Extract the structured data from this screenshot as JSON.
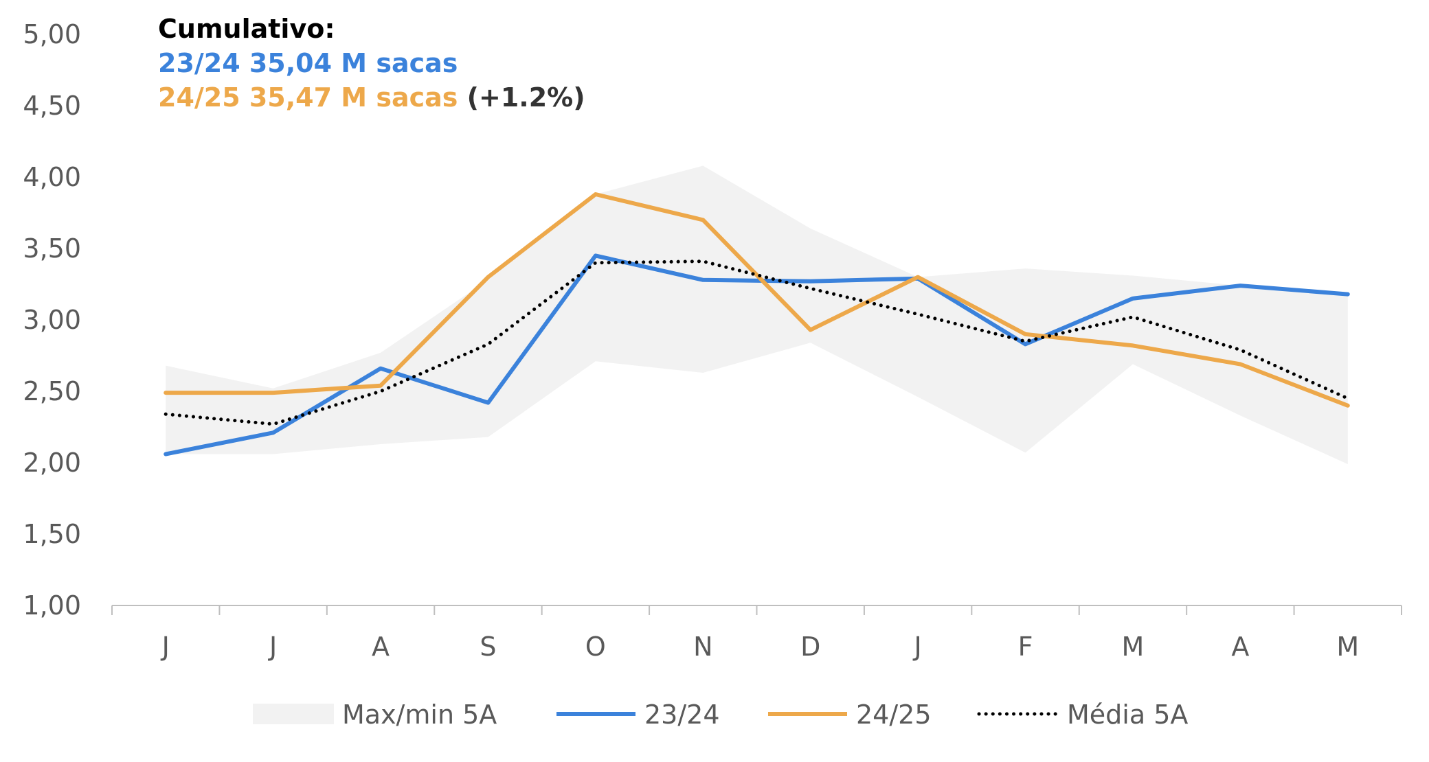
{
  "annotation": {
    "title": "Cumulativo:",
    "line1": "23/24 35,04 M sacas",
    "line2": "24/25 35,47 M sacas",
    "line2_change": "(+1.2%)"
  },
  "colors": {
    "series_2324": "#3B82DB",
    "series_2425": "#EDA84A",
    "media": "#000000",
    "band": "#F2F2F2",
    "axis": "#BFBFBF",
    "tick_text": "#595959",
    "annot_pct": "#333333"
  },
  "chart_data": {
    "type": "line",
    "categories": [
      "J",
      "J",
      "A",
      "S",
      "O",
      "N",
      "D",
      "J",
      "F",
      "M",
      "A",
      "M"
    ],
    "ylim": [
      1.0,
      5.0
    ],
    "yticks": [
      "5,00",
      "4,50",
      "4,00",
      "3,50",
      "3,00",
      "2,50",
      "2,00",
      "1,50",
      "1,00"
    ],
    "ytick_values": [
      5.0,
      4.5,
      4.0,
      3.5,
      3.0,
      2.5,
      2.0,
      1.5,
      1.0
    ],
    "grid": false,
    "legend_position": "bottom",
    "band": {
      "name": "Max/min 5A",
      "max": [
        2.68,
        2.52,
        2.77,
        3.28,
        3.88,
        4.08,
        3.64,
        3.3,
        3.36,
        3.31,
        3.24,
        3.19
      ],
      "min": [
        2.06,
        2.06,
        2.13,
        2.18,
        2.71,
        2.63,
        2.84,
        2.46,
        2.07,
        2.69,
        2.33,
        1.99
      ]
    },
    "series": [
      {
        "name": "23/24",
        "values": [
          2.06,
          2.21,
          2.66,
          2.42,
          3.45,
          3.28,
          3.27,
          3.29,
          2.83,
          3.15,
          3.24,
          3.18
        ]
      },
      {
        "name": "24/25",
        "values": [
          2.49,
          2.49,
          2.54,
          3.3,
          3.88,
          3.7,
          2.93,
          3.3,
          2.9,
          2.82,
          2.69,
          2.4
        ]
      },
      {
        "name": "Média 5A",
        "values": [
          2.34,
          2.27,
          2.5,
          2.83,
          3.4,
          3.41,
          3.22,
          3.04,
          2.85,
          3.02,
          2.79,
          2.45
        ]
      }
    ]
  }
}
